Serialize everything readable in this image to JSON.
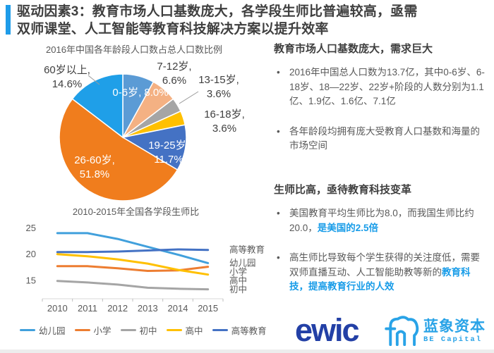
{
  "header": {
    "title_line1": "驱动因素3：教育市场人口基数庞大，各学段生师比普遍较高，亟需",
    "title_line2": "双师课堂、人工智能等教育科技解决方案以提升效率",
    "accent_color": "#1e9ce9"
  },
  "chart_data": [
    {
      "type": "pie",
      "title": "2016年中国各年龄段人口数占总人口数比例",
      "unit": "%",
      "slices": [
        {
          "label": "0-6岁",
          "value": 8.0,
          "text": "0-6岁, 8.0%",
          "color": "#5b9bd5",
          "label_inside": true
        },
        {
          "label": "7-12岁",
          "value": 6.6,
          "text": "7-12岁, 6.6%",
          "color": "#f4b183",
          "label_inside": false
        },
        {
          "label": "13-15岁",
          "value": 3.6,
          "text": "13-15岁, 3.6%",
          "color": "#a5a5a5",
          "label_inside": false
        },
        {
          "label": "16-18岁",
          "value": 3.6,
          "text": "16-18岁, 3.6%",
          "color": "#ffc000",
          "label_inside": false
        },
        {
          "label": "19-25岁",
          "value": 11.7,
          "text": "19-25岁, 11.7%",
          "color": "#4472c4",
          "label_inside": true
        },
        {
          "label": "26-60岁",
          "value": 51.8,
          "text": "26-60岁, 51.8%",
          "color": "#f07d1d",
          "label_inside": true
        },
        {
          "label": "60岁以上",
          "value": 14.6,
          "text": "60岁以上, 14.6%",
          "color": "#1f9fe8",
          "label_inside": false
        }
      ],
      "start_angle": "12-oclock-clockwise"
    },
    {
      "type": "line",
      "title": "2010-2015年全国各学段生师比",
      "x": [
        2010,
        2011,
        2012,
        2013,
        2014,
        2015
      ],
      "series": [
        {
          "name": "幼儿园",
          "color": "#41a0dc",
          "values": [
            24.0,
            24.0,
            22.9,
            21.4,
            19.9,
            18.3
          ]
        },
        {
          "name": "小学",
          "color": "#ed7d31",
          "values": [
            17.7,
            17.7,
            17.3,
            16.8,
            16.9,
            17.6
          ]
        },
        {
          "name": "初中",
          "color": "#a5a5a5",
          "values": [
            14.9,
            14.6,
            14.2,
            13.6,
            13.4,
            13.3
          ]
        },
        {
          "name": "高中",
          "color": "#ffc000",
          "values": [
            20.0,
            19.6,
            19.0,
            18.2,
            17.0,
            16.1
          ]
        },
        {
          "name": "高等教育",
          "color": "#4472c4",
          "values": [
            20.4,
            20.4,
            20.5,
            20.7,
            20.9,
            20.8
          ]
        }
      ],
      "yticks": [
        15,
        20,
        25
      ],
      "ylim": [
        11.5,
        26
      ],
      "grid": false,
      "legend_position": "bottom",
      "end_labels": [
        "高等教育",
        "幼儿园",
        "小学",
        "高中",
        "初中"
      ]
    }
  ],
  "right": {
    "section1": {
      "heading": "教育市场人口基数庞大，需求巨大",
      "bullet1": "2016年中国总人口数为13.7亿，其中0-6岁、6-18岁、18—22岁、22岁+阶段的人数分别为1.1亿、1.9亿、1.6亿、7.1亿",
      "bullet2": "各年龄段均拥有庞大受教育人口基数和海量的市场空间"
    },
    "section2": {
      "heading": "生师比高，亟待教育科技变革",
      "bullet1_normal": "美国教育平均生师比为8.0，而我国生师比约20.0，",
      "bullet1_highlight": "是美国的2.5倍",
      "bullet2_normal": "高生师比导致每个学生获得的关注度低，需要双师直播互动、人工智能助教等新的",
      "bullet2_highlight": "教育科技，提高教育行业的人效"
    },
    "highlight_color": "#189ce8"
  },
  "footer": {
    "ewic_logo_text": "ewic",
    "be_capital_name": "蓝象资本",
    "be_capital_sub": "BE Capital",
    "ewic_color": "#2340a6",
    "be_color": "#29a3e7"
  }
}
